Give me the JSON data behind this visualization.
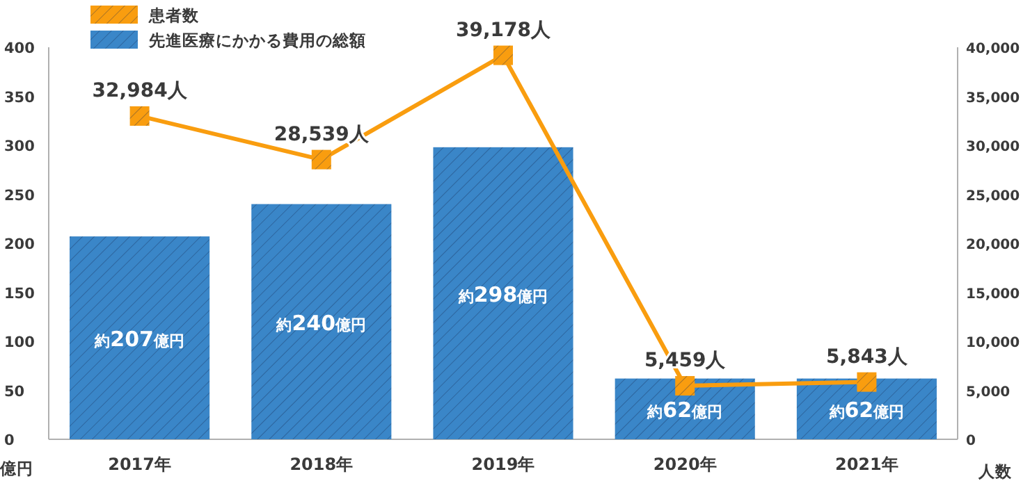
{
  "chart_data": {
    "type": "bar",
    "categories": [
      "2017年",
      "2018年",
      "2019年",
      "2020年",
      "2021年"
    ],
    "ylabel": "億円",
    "y2label": "人数",
    "ylim": [
      0,
      400
    ],
    "yticks": [
      0,
      50,
      100,
      150,
      200,
      250,
      300,
      350,
      400
    ],
    "y2lim": [
      0,
      40000
    ],
    "y2ticks": [
      0,
      {
        "value": 5000,
        "label": "5,000"
      },
      {
        "value": 10000,
        "label": "10,000"
      },
      {
        "value": 15000,
        "label": "15,000"
      },
      {
        "value": 20000,
        "label": "20,000"
      },
      {
        "value": 25000,
        "label": "25,000"
      },
      {
        "value": 30000,
        "label": "30,000"
      },
      {
        "value": 35000,
        "label": "35,000"
      },
      {
        "value": 40000,
        "label": "40,000"
      }
    ],
    "legend": "top left",
    "marker": "square",
    "series": [
      {
        "name": "患者数",
        "type": "line",
        "axis": "y2",
        "color": "#f99d0f",
        "values": [
          32984,
          28539,
          39178,
          5459,
          5843
        ],
        "value_labels": [
          "32,984人",
          "28,539人",
          "39,178人",
          "5,459人",
          "5,843人"
        ]
      },
      {
        "name": "先進医療にかかる費用の総額",
        "color": "#3a86c8",
        "values": [
          207,
          240,
          298,
          62,
          62
        ],
        "value_labels": [
          "約207億円",
          "約240億円",
          "約298億円",
          "約62億円",
          "約62億円"
        ]
      }
    ]
  }
}
